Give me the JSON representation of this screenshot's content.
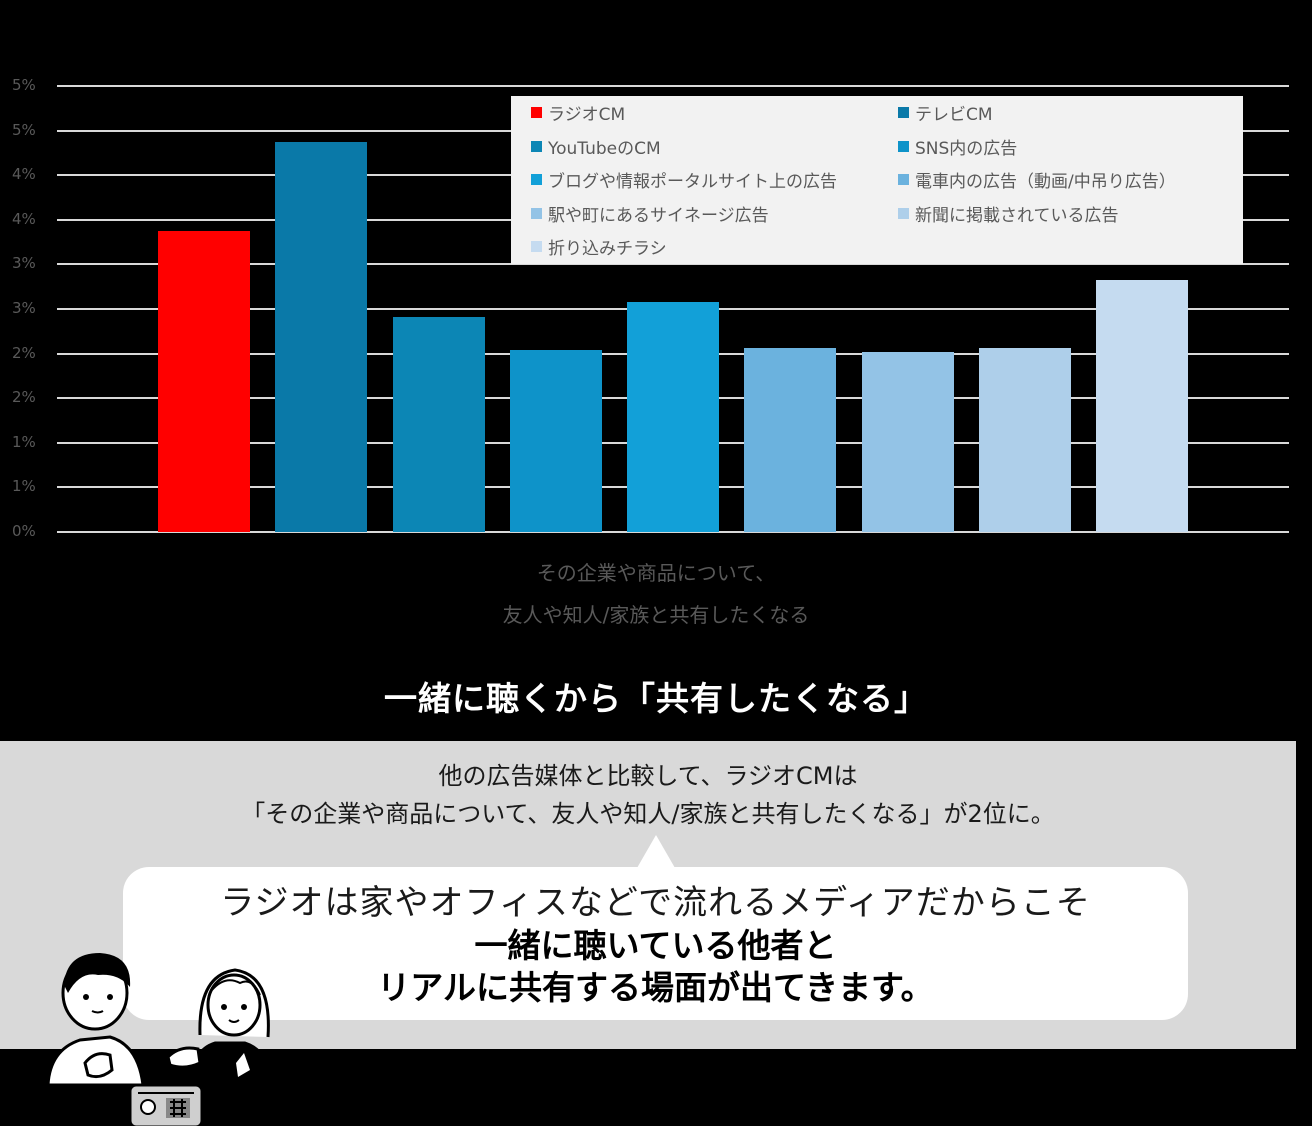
{
  "chart_data": {
    "type": "bar",
    "title": "",
    "xlabel": "その企業や商品について、友人や知人/家族と共有したくなる",
    "ylabel": "",
    "ylim": [
      0,
      5
    ],
    "y_ticks": [
      "0%",
      "1%",
      "1%",
      "2%",
      "2%",
      "3%",
      "3%",
      "4%",
      "4%",
      "5%",
      "5%"
    ],
    "grid": true,
    "legend_position": "top-right-inside",
    "categories": [
      "ラジオCM",
      "テレビCM",
      "YouTubeのCM",
      "SNS内の広告",
      "ブログや情報ポータルサイト上の広告",
      "電車内の広告（動画/中吊り広告）",
      "駅や町にあるサイネージ広告",
      "新聞に掲載されている広告",
      "折り込みチラシ"
    ],
    "series": [
      {
        "name": "ラジオCM",
        "values": [
          3.37
        ],
        "color": "#ff0000"
      },
      {
        "name": "テレビCM",
        "values": [
          4.37
        ],
        "color": "#0a79a8"
      },
      {
        "name": "YouTubeのCM",
        "values": [
          2.41
        ],
        "color": "#0c86b5"
      },
      {
        "name": "SNS内の広告",
        "values": [
          2.04
        ],
        "color": "#0e93c9"
      },
      {
        "name": "ブログや情報ポータルサイト上の広告",
        "values": [
          2.58
        ],
        "color": "#12a0d8"
      },
      {
        "name": "電車内の広告（動画/中吊り広告）",
        "values": [
          2.06
        ],
        "color": "#6bb2de"
      },
      {
        "name": "駅や町にあるサイネージ広告",
        "values": [
          2.02
        ],
        "color": "#93c3e6"
      },
      {
        "name": "新聞に掲載されている広告",
        "values": [
          2.06
        ],
        "color": "#aecfea"
      },
      {
        "name": "折り込みチラシ",
        "values": [
          2.83
        ],
        "color": "#c5dbf0"
      }
    ]
  },
  "chart": {
    "xlabel_line1": "その企業や商品について、",
    "xlabel_line2": "友人や知人/家族と共有したくなる"
  },
  "legend": [
    {
      "label": "ラジオCM",
      "color": "#ff0000"
    },
    {
      "label": "テレビCM",
      "color": "#0a79a8"
    },
    {
      "label": "YouTubeのCM",
      "color": "#0c86b5"
    },
    {
      "label": "SNS内の広告",
      "color": "#0e93c9"
    },
    {
      "label": "ブログや情報ポータルサイト上の広告",
      "color": "#12a0d8"
    },
    {
      "label": "電車内の広告（動画/中吊り広告）",
      "color": "#6bb2de"
    },
    {
      "label": "駅や町にあるサイネージ広告",
      "color": "#93c3e6"
    },
    {
      "label": "新聞に掲載されている広告",
      "color": "#aecfea"
    },
    {
      "label": "折り込みチラシ",
      "color": "#c5dbf0"
    }
  ],
  "headline": "一緒に聴くから「共有したくなる」",
  "panel": {
    "line1": "他の広告媒体と比較して、ラジオCMは",
    "line2": "「その企業や商品について、友人や知人/家族と共有したくなる」が2位に。"
  },
  "bubble": {
    "line1": "ラジオは家やオフィスなどで流れるメディアだからこそ",
    "line2": "一緒に聴いている他者と",
    "line3": "リアルに共有する場面が出てきます。"
  },
  "illustration": {
    "icon": "people-listening-radio-illustration"
  }
}
